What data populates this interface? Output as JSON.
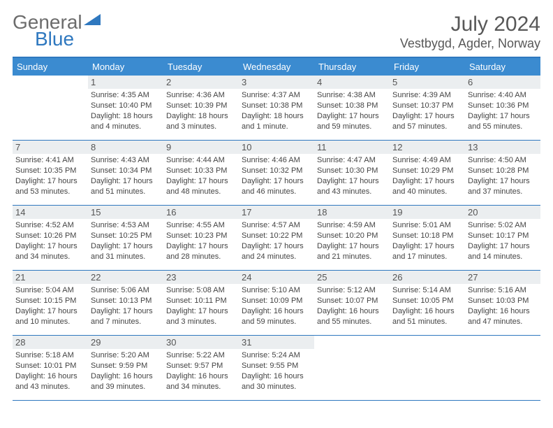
{
  "logo": {
    "text1": "General",
    "text2": "Blue"
  },
  "title": {
    "month": "July 2024",
    "location": "Vestbygd, Agder, Norway"
  },
  "weekdays": [
    "Sunday",
    "Monday",
    "Tuesday",
    "Wednesday",
    "Thursday",
    "Friday",
    "Saturday"
  ],
  "colors": {
    "accent": "#3b8bd0",
    "line": "#2f78bf",
    "day_bg": "#ebeef0",
    "text": "#444444"
  },
  "weeks": [
    [
      {
        "n": "",
        "sr": "",
        "ss": "",
        "dl": ""
      },
      {
        "n": "1",
        "sr": "Sunrise: 4:35 AM",
        "ss": "Sunset: 10:40 PM",
        "dl": "Daylight: 18 hours and 4 minutes."
      },
      {
        "n": "2",
        "sr": "Sunrise: 4:36 AM",
        "ss": "Sunset: 10:39 PM",
        "dl": "Daylight: 18 hours and 3 minutes."
      },
      {
        "n": "3",
        "sr": "Sunrise: 4:37 AM",
        "ss": "Sunset: 10:38 PM",
        "dl": "Daylight: 18 hours and 1 minute."
      },
      {
        "n": "4",
        "sr": "Sunrise: 4:38 AM",
        "ss": "Sunset: 10:38 PM",
        "dl": "Daylight: 17 hours and 59 minutes."
      },
      {
        "n": "5",
        "sr": "Sunrise: 4:39 AM",
        "ss": "Sunset: 10:37 PM",
        "dl": "Daylight: 17 hours and 57 minutes."
      },
      {
        "n": "6",
        "sr": "Sunrise: 4:40 AM",
        "ss": "Sunset: 10:36 PM",
        "dl": "Daylight: 17 hours and 55 minutes."
      }
    ],
    [
      {
        "n": "7",
        "sr": "Sunrise: 4:41 AM",
        "ss": "Sunset: 10:35 PM",
        "dl": "Daylight: 17 hours and 53 minutes."
      },
      {
        "n": "8",
        "sr": "Sunrise: 4:43 AM",
        "ss": "Sunset: 10:34 PM",
        "dl": "Daylight: 17 hours and 51 minutes."
      },
      {
        "n": "9",
        "sr": "Sunrise: 4:44 AM",
        "ss": "Sunset: 10:33 PM",
        "dl": "Daylight: 17 hours and 48 minutes."
      },
      {
        "n": "10",
        "sr": "Sunrise: 4:46 AM",
        "ss": "Sunset: 10:32 PM",
        "dl": "Daylight: 17 hours and 46 minutes."
      },
      {
        "n": "11",
        "sr": "Sunrise: 4:47 AM",
        "ss": "Sunset: 10:30 PM",
        "dl": "Daylight: 17 hours and 43 minutes."
      },
      {
        "n": "12",
        "sr": "Sunrise: 4:49 AM",
        "ss": "Sunset: 10:29 PM",
        "dl": "Daylight: 17 hours and 40 minutes."
      },
      {
        "n": "13",
        "sr": "Sunrise: 4:50 AM",
        "ss": "Sunset: 10:28 PM",
        "dl": "Daylight: 17 hours and 37 minutes."
      }
    ],
    [
      {
        "n": "14",
        "sr": "Sunrise: 4:52 AM",
        "ss": "Sunset: 10:26 PM",
        "dl": "Daylight: 17 hours and 34 minutes."
      },
      {
        "n": "15",
        "sr": "Sunrise: 4:53 AM",
        "ss": "Sunset: 10:25 PM",
        "dl": "Daylight: 17 hours and 31 minutes."
      },
      {
        "n": "16",
        "sr": "Sunrise: 4:55 AM",
        "ss": "Sunset: 10:23 PM",
        "dl": "Daylight: 17 hours and 28 minutes."
      },
      {
        "n": "17",
        "sr": "Sunrise: 4:57 AM",
        "ss": "Sunset: 10:22 PM",
        "dl": "Daylight: 17 hours and 24 minutes."
      },
      {
        "n": "18",
        "sr": "Sunrise: 4:59 AM",
        "ss": "Sunset: 10:20 PM",
        "dl": "Daylight: 17 hours and 21 minutes."
      },
      {
        "n": "19",
        "sr": "Sunrise: 5:01 AM",
        "ss": "Sunset: 10:18 PM",
        "dl": "Daylight: 17 hours and 17 minutes."
      },
      {
        "n": "20",
        "sr": "Sunrise: 5:02 AM",
        "ss": "Sunset: 10:17 PM",
        "dl": "Daylight: 17 hours and 14 minutes."
      }
    ],
    [
      {
        "n": "21",
        "sr": "Sunrise: 5:04 AM",
        "ss": "Sunset: 10:15 PM",
        "dl": "Daylight: 17 hours and 10 minutes."
      },
      {
        "n": "22",
        "sr": "Sunrise: 5:06 AM",
        "ss": "Sunset: 10:13 PM",
        "dl": "Daylight: 17 hours and 7 minutes."
      },
      {
        "n": "23",
        "sr": "Sunrise: 5:08 AM",
        "ss": "Sunset: 10:11 PM",
        "dl": "Daylight: 17 hours and 3 minutes."
      },
      {
        "n": "24",
        "sr": "Sunrise: 5:10 AM",
        "ss": "Sunset: 10:09 PM",
        "dl": "Daylight: 16 hours and 59 minutes."
      },
      {
        "n": "25",
        "sr": "Sunrise: 5:12 AM",
        "ss": "Sunset: 10:07 PM",
        "dl": "Daylight: 16 hours and 55 minutes."
      },
      {
        "n": "26",
        "sr": "Sunrise: 5:14 AM",
        "ss": "Sunset: 10:05 PM",
        "dl": "Daylight: 16 hours and 51 minutes."
      },
      {
        "n": "27",
        "sr": "Sunrise: 5:16 AM",
        "ss": "Sunset: 10:03 PM",
        "dl": "Daylight: 16 hours and 47 minutes."
      }
    ],
    [
      {
        "n": "28",
        "sr": "Sunrise: 5:18 AM",
        "ss": "Sunset: 10:01 PM",
        "dl": "Daylight: 16 hours and 43 minutes."
      },
      {
        "n": "29",
        "sr": "Sunrise: 5:20 AM",
        "ss": "Sunset: 9:59 PM",
        "dl": "Daylight: 16 hours and 39 minutes."
      },
      {
        "n": "30",
        "sr": "Sunrise: 5:22 AM",
        "ss": "Sunset: 9:57 PM",
        "dl": "Daylight: 16 hours and 34 minutes."
      },
      {
        "n": "31",
        "sr": "Sunrise: 5:24 AM",
        "ss": "Sunset: 9:55 PM",
        "dl": "Daylight: 16 hours and 30 minutes."
      },
      {
        "n": "",
        "sr": "",
        "ss": "",
        "dl": ""
      },
      {
        "n": "",
        "sr": "",
        "ss": "",
        "dl": ""
      },
      {
        "n": "",
        "sr": "",
        "ss": "",
        "dl": ""
      }
    ]
  ]
}
